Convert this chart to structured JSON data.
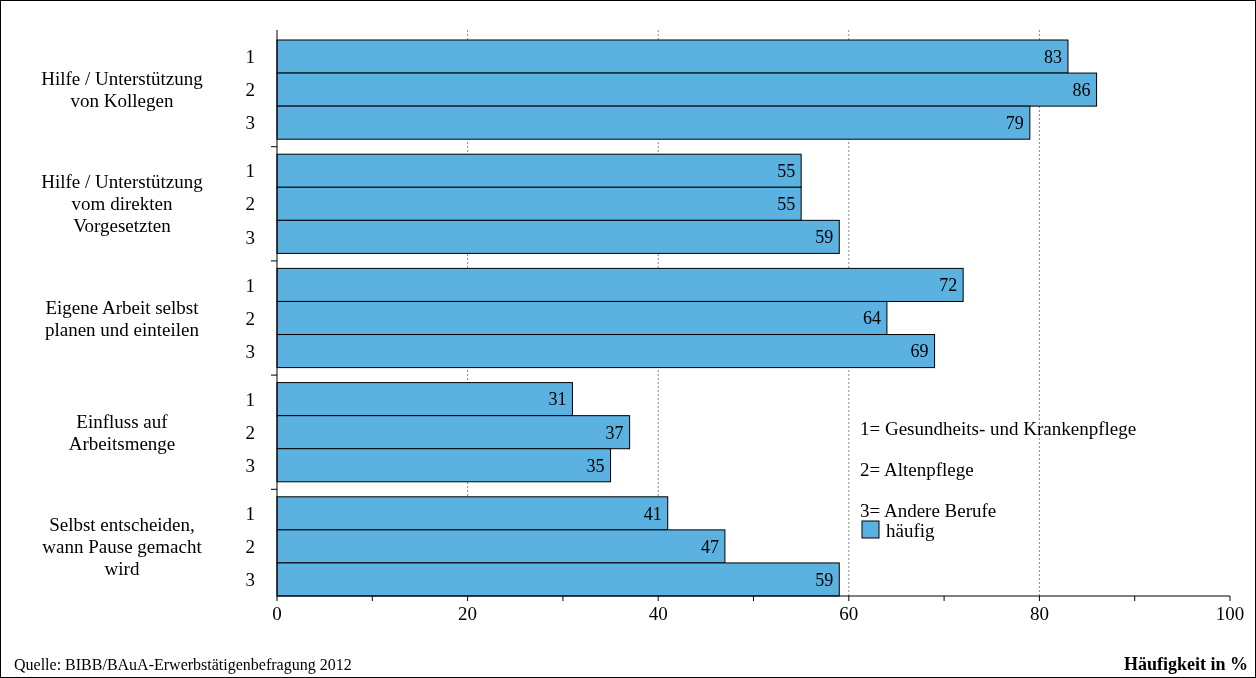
{
  "chart_data": {
    "type": "bar",
    "orientation": "horizontal",
    "categories": [
      "1",
      "2",
      "3",
      "1",
      "2",
      "3",
      "1",
      "2",
      "3",
      "1",
      "2",
      "3",
      "1",
      "2",
      "3"
    ],
    "series": [
      {
        "name": "häufig",
        "color": "#5bb1e0",
        "values": [
          83,
          86,
          79,
          55,
          55,
          59,
          72,
          64,
          69,
          31,
          37,
          35,
          41,
          47,
          59
        ]
      }
    ],
    "data_labels": true,
    "xlim": [
      0,
      100
    ],
    "xticks": [
      0,
      {
        "value": 10,
        "label": null
      },
      20,
      {
        "value": 30,
        "label": null
      },
      40,
      {
        "value": 50,
        "label": null
      },
      60,
      {
        "value": 70,
        "label": null
      },
      80,
      {
        "value": 90,
        "label": null
      },
      100
    ],
    "grid": "x",
    "xlabel": "Häufigkeit in %",
    "legend": "bottom right",
    "annotations": [
      "Hilfe / Unterstützung\nvon Kollegen",
      "Hilfe / Unterstützung\nvom direkten\nVorgesetzten",
      "Eigene Arbeit selbst\nplanen und einteilen",
      "Einfluss auf\nArbeitsmenge",
      "Selbst entscheiden,\nwann Pause gemacht\nwird",
      "1= Gesundheits- und Krankenpflege",
      "2= Altenpflege",
      "3= Andere Berufe",
      "Quelle: BIBB/BAuA-Erwerbstätigenbefragung 2012"
    ]
  }
}
